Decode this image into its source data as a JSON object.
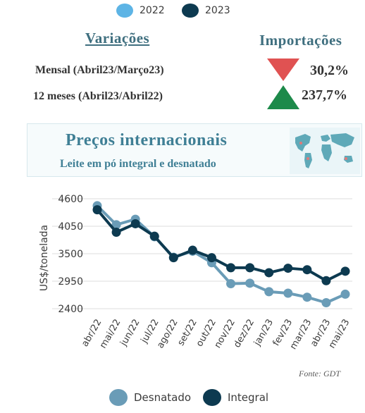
{
  "legend_top": [
    {
      "label": "2022",
      "color": "#5db4e5"
    },
    {
      "label": "2023",
      "color": "#0d3a50"
    }
  ],
  "variations": {
    "title": "Variações",
    "import_title": "Importações",
    "rows": [
      {
        "label": "Mensal (Abril23/Março23)",
        "value": "30,2%",
        "direction": "down",
        "color": "#e05252"
      },
      {
        "label": "12 meses (Abril23/Abril22)",
        "value": "237,7%",
        "direction": "up",
        "color": "#1d8a4a"
      }
    ]
  },
  "banner": {
    "title": "Preços internacionais",
    "subtitle": "Leite em pó integral e desnatado",
    "map_icon": "world-map-icon"
  },
  "source": "Fonte: GDT",
  "legend_bottom": [
    {
      "label": "Desnatado",
      "color": "#6a9cb7"
    },
    {
      "label": "Integral",
      "color": "#0d3a50"
    }
  ],
  "chart_data": {
    "type": "line",
    "ylabel": "US$/tonelada",
    "ylim": [
      2400,
      4600
    ],
    "yticks": [
      4600,
      4050,
      3500,
      2950,
      2400
    ],
    "categories": [
      "abr/22",
      "mai/22",
      "jun/22",
      "jul/22",
      "ago/22",
      "set/22",
      "out/22",
      "nov/22",
      "dez/22",
      "jan/23",
      "fev/23",
      "mar/23",
      "abr/23",
      "mai/23"
    ],
    "grid": true,
    "legend": "bottom",
    "series": [
      {
        "name": "Desnatado",
        "color": "#6a9cb7",
        "values": [
          4460,
          4080,
          4190,
          3840,
          3430,
          3550,
          3320,
          2900,
          2910,
          2740,
          2710,
          2630,
          2520,
          2690
        ]
      },
      {
        "name": "Integral",
        "color": "#0d3a50",
        "values": [
          4380,
          3930,
          4100,
          3850,
          3420,
          3570,
          3420,
          3220,
          3220,
          3120,
          3210,
          3180,
          2960,
          3150
        ]
      }
    ]
  }
}
